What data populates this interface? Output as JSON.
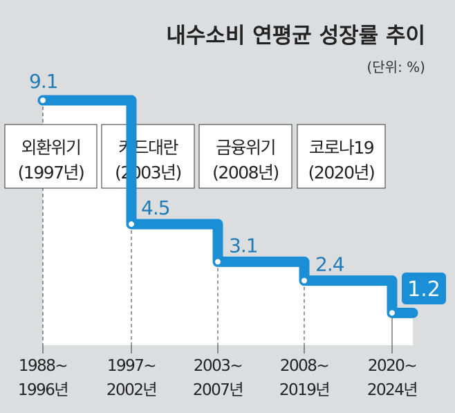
{
  "chart_data": {
    "type": "line",
    "step": true,
    "title": "내수소비 연평균 성장률 추이",
    "unit_label": "(단위: %)",
    "categories": [
      [
        "1988~",
        "1996년"
      ],
      [
        "1997~",
        "2002년"
      ],
      [
        "2003~",
        "2007년"
      ],
      [
        "2008~",
        "2019년"
      ],
      [
        "2020~",
        "2024년"
      ]
    ],
    "values": [
      9.1,
      4.5,
      3.1,
      2.4,
      1.2
    ],
    "value_labels": [
      "9.1",
      "4.5",
      "3.1",
      "2.4",
      "1.2"
    ],
    "ylim": [
      0,
      9.1
    ],
    "events": [
      {
        "name": "외환위기",
        "year": "(1997년)"
      },
      {
        "name": "카드대란",
        "year": "(2003년)"
      },
      {
        "name": "금융위기",
        "year": "(2008년)"
      },
      {
        "name": "코로나19",
        "year": "(2020년)"
      }
    ],
    "colors": {
      "line": "#1b8fd6",
      "label": "#1f7bb6",
      "background": "#dcdddf",
      "fill": "#ffffff"
    }
  }
}
